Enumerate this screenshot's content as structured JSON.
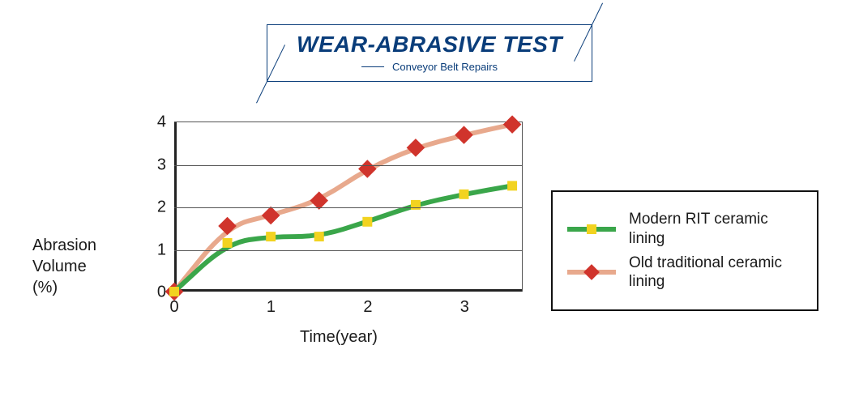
{
  "title": {
    "main": "WEAR-ABRASIVE TEST",
    "sub": "Conveyor Belt Repairs",
    "color": "#0a3d7a",
    "main_fontsize": 28,
    "sub_fontsize": 13
  },
  "chart": {
    "type": "line",
    "xlabel": "Time(year)",
    "ylabel_line1": "Abrasion",
    "ylabel_line2": "Volume",
    "ylabel_line3": "(%)",
    "label_fontsize": 20,
    "xlim": [
      0,
      3.6
    ],
    "ylim": [
      0,
      4
    ],
    "xticks": [
      0,
      1,
      2,
      3
    ],
    "yticks": [
      0,
      1,
      2,
      3,
      4
    ],
    "grid_color": "#555555",
    "axis_color": "#222222",
    "background_color": "#ffffff",
    "series": [
      {
        "name": "Old traditional ceramic lining",
        "line_color": "#e8a98d",
        "line_width": 6,
        "marker_color": "#d0342c",
        "marker_shape": "diamond",
        "marker_size": 16,
        "x": [
          0,
          0.55,
          1.0,
          1.5,
          2.0,
          2.5,
          3.0,
          3.5
        ],
        "y": [
          0,
          1.55,
          1.8,
          2.15,
          2.9,
          3.4,
          3.7,
          3.95
        ]
      },
      {
        "name": "Modern RIT ceramic lining",
        "line_color": "#3aa64a",
        "line_width": 6,
        "marker_color": "#f2d320",
        "marker_shape": "square",
        "marker_size": 12,
        "x": [
          0,
          0.55,
          1.0,
          1.5,
          2.0,
          2.5,
          3.0,
          3.5
        ],
        "y": [
          0,
          1.15,
          1.3,
          1.3,
          1.65,
          2.05,
          2.3,
          2.5
        ]
      }
    ]
  },
  "legend": {
    "items": [
      {
        "label": "Modern RIT ceramic lining",
        "line_color": "#3aa64a",
        "marker_color": "#f2d320",
        "marker_shape": "square"
      },
      {
        "label": "Old traditional ceramic lining",
        "line_color": "#e8a98d",
        "marker_color": "#d0342c",
        "marker_shape": "diamond"
      }
    ],
    "border_color": "#111111",
    "fontsize": 19
  }
}
